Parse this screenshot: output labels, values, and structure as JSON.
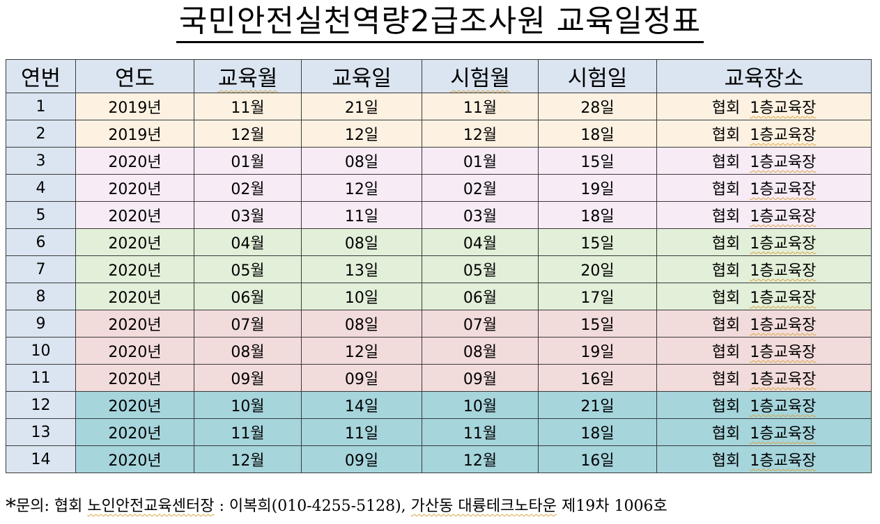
{
  "title": "국민안전실천역량2급조사원 교육일정표",
  "headers": [
    "연번",
    "연도",
    "교육월",
    "교육일",
    "시험월",
    "시험일",
    "교육장소"
  ],
  "rows": [
    {
      "no": "1",
      "year": "2019년",
      "edu_month": "11월",
      "edu_day": "21일",
      "exam_month": "11월",
      "exam_day": "28일",
      "place_a": "협회",
      "place_b": "1층교육장",
      "group": "g1"
    },
    {
      "no": "2",
      "year": "2019년",
      "edu_month": "12월",
      "edu_day": "12일",
      "exam_month": "12월",
      "exam_day": "18일",
      "place_a": "협회",
      "place_b": "1층교육장",
      "group": "g1"
    },
    {
      "no": "3",
      "year": "2020년",
      "edu_month": "01월",
      "edu_day": "08일",
      "exam_month": "01월",
      "exam_day": "15일",
      "place_a": "협회",
      "place_b": "1층교육장",
      "group": "g2"
    },
    {
      "no": "4",
      "year": "2020년",
      "edu_month": "02월",
      "edu_day": "12일",
      "exam_month": "02월",
      "exam_day": "19일",
      "place_a": "협회",
      "place_b": "1층교육장",
      "group": "g2"
    },
    {
      "no": "5",
      "year": "2020년",
      "edu_month": "03월",
      "edu_day": "11일",
      "exam_month": "03월",
      "exam_day": "18일",
      "place_a": "협회",
      "place_b": "1층교육장",
      "group": "g2"
    },
    {
      "no": "6",
      "year": "2020년",
      "edu_month": "04월",
      "edu_day": "08일",
      "exam_month": "04월",
      "exam_day": "15일",
      "place_a": "협회",
      "place_b": "1층교육장",
      "group": "g3"
    },
    {
      "no": "7",
      "year": "2020년",
      "edu_month": "05월",
      "edu_day": "13일",
      "exam_month": "05월",
      "exam_day": "20일",
      "place_a": "협회",
      "place_b": "1층교육장",
      "group": "g3"
    },
    {
      "no": "8",
      "year": "2020년",
      "edu_month": "06월",
      "edu_day": "10일",
      "exam_month": "06월",
      "exam_day": "17일",
      "place_a": "협회",
      "place_b": "1층교육장",
      "group": "g3"
    },
    {
      "no": "9",
      "year": "2020년",
      "edu_month": "07월",
      "edu_day": "08일",
      "exam_month": "07월",
      "exam_day": "15일",
      "place_a": "협회",
      "place_b": "1층교육장",
      "group": "g4"
    },
    {
      "no": "10",
      "year": "2020년",
      "edu_month": "08월",
      "edu_day": "12일",
      "exam_month": "08월",
      "exam_day": "19일",
      "place_a": "협회",
      "place_b": "1층교육장",
      "group": "g4"
    },
    {
      "no": "11",
      "year": "2020년",
      "edu_month": "09월",
      "edu_day": "09일",
      "exam_month": "09월",
      "exam_day": "16일",
      "place_a": "협회",
      "place_b": "1층교육장",
      "group": "g4"
    },
    {
      "no": "12",
      "year": "2020년",
      "edu_month": "10월",
      "edu_day": "14일",
      "exam_month": "10월",
      "exam_day": "21일",
      "place_a": "협회",
      "place_b": "1층교육장",
      "group": "g5"
    },
    {
      "no": "13",
      "year": "2020년",
      "edu_month": "11월",
      "edu_day": "11일",
      "exam_month": "11월",
      "exam_day": "18일",
      "place_a": "협회",
      "place_b": "1층교육장",
      "group": "g5"
    },
    {
      "no": "14",
      "year": "2020년",
      "edu_month": "12월",
      "edu_day": "09일",
      "exam_month": "12월",
      "exam_day": "16일",
      "place_a": "협회",
      "place_b": "1층교육장",
      "group": "g5"
    }
  ],
  "note": {
    "star": "*",
    "label": "문의: 협회 ",
    "center": "노인안전교육센터장",
    "contact": " : 이복희(010-4255-5128), ",
    "location": "가산동 대륭테크노타운",
    "address_rest": " 제19차 1006호"
  },
  "colors": {
    "header_bg": "#dbe5f1",
    "g1": "#fdf2e2",
    "g2": "#f7ebf6",
    "g3": "#e2efd9",
    "g4": "#f2dcdb",
    "g5": "#a6d5dc"
  }
}
